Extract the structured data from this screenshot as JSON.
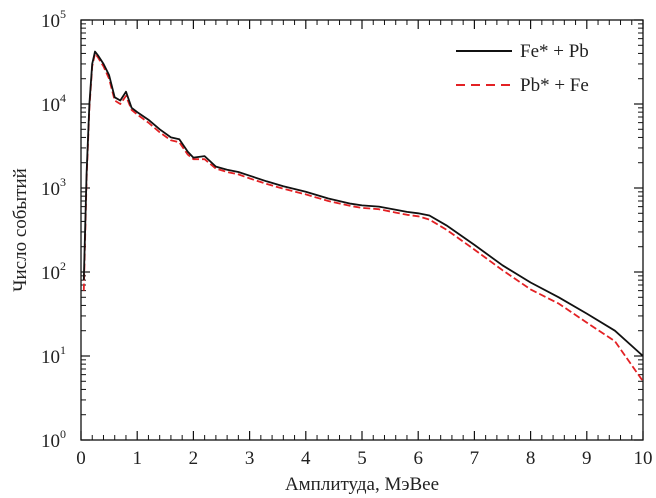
{
  "chart_data": {
    "type": "line",
    "xlabel": "Амплитуда, МэВее",
    "ylabel": "Число событий",
    "xlim": [
      0,
      10
    ],
    "ylim_log10": [
      0,
      5
    ],
    "yscale": "log",
    "grid": false,
    "legend_position": "top-right",
    "x_ticks": [
      "0",
      "1",
      "2",
      "3",
      "4",
      "5",
      "6",
      "7",
      "8",
      "9",
      "10"
    ],
    "y_ticks": [
      {
        "base": "10",
        "exp": "0",
        "value": 1
      },
      {
        "base": "10",
        "exp": "1",
        "value": 10
      },
      {
        "base": "10",
        "exp": "2",
        "value": 100
      },
      {
        "base": "10",
        "exp": "3",
        "value": 1000
      },
      {
        "base": "10",
        "exp": "4",
        "value": 10000
      },
      {
        "base": "10",
        "exp": "5",
        "value": 100000
      }
    ],
    "series": [
      {
        "name": "Fe* + Pb",
        "color": "#111111",
        "style": "solid",
        "x": [
          0.05,
          0.1,
          0.15,
          0.2,
          0.25,
          0.3,
          0.4,
          0.5,
          0.6,
          0.7,
          0.8,
          0.9,
          1.0,
          1.2,
          1.4,
          1.6,
          1.75,
          1.9,
          2.0,
          2.2,
          2.4,
          2.6,
          2.8,
          3.0,
          3.3,
          3.6,
          4.0,
          4.4,
          4.8,
          5.0,
          5.3,
          5.6,
          5.8,
          6.0,
          6.2,
          6.5,
          7.0,
          7.5,
          8.0,
          8.5,
          9.0,
          9.5,
          10.0
        ],
        "y": [
          80,
          1500,
          10000,
          30000,
          42000,
          38000,
          30000,
          22000,
          12000,
          11000,
          14000,
          9000,
          8000,
          6500,
          5000,
          4000,
          3800,
          2700,
          2300,
          2400,
          1800,
          1650,
          1550,
          1400,
          1200,
          1050,
          900,
          750,
          650,
          620,
          600,
          550,
          520,
          500,
          470,
          360,
          210,
          120,
          75,
          50,
          32,
          20,
          10
        ]
      },
      {
        "name": "Pb* + Fe",
        "color": "#e32124",
        "style": "dashed",
        "x": [
          0.05,
          0.1,
          0.15,
          0.2,
          0.25,
          0.3,
          0.4,
          0.5,
          0.6,
          0.7,
          0.8,
          0.9,
          1.0,
          1.2,
          1.4,
          1.6,
          1.75,
          1.9,
          2.0,
          2.2,
          2.4,
          2.6,
          2.8,
          3.0,
          3.3,
          3.6,
          4.0,
          4.4,
          4.8,
          5.0,
          5.3,
          5.6,
          5.8,
          6.0,
          6.2,
          6.5,
          7.0,
          7.5,
          8.0,
          8.5,
          9.0,
          9.5,
          10.0
        ],
        "y": [
          60,
          1300,
          9000,
          28000,
          40000,
          36000,
          28000,
          20000,
          11000,
          10000,
          12500,
          8500,
          7500,
          6000,
          4600,
          3700,
          3500,
          2500,
          2200,
          2200,
          1700,
          1550,
          1450,
          1300,
          1120,
          980,
          840,
          700,
          610,
          580,
          560,
          510,
          480,
          460,
          420,
          320,
          185,
          105,
          62,
          42,
          25,
          15,
          5
        ]
      }
    ]
  }
}
